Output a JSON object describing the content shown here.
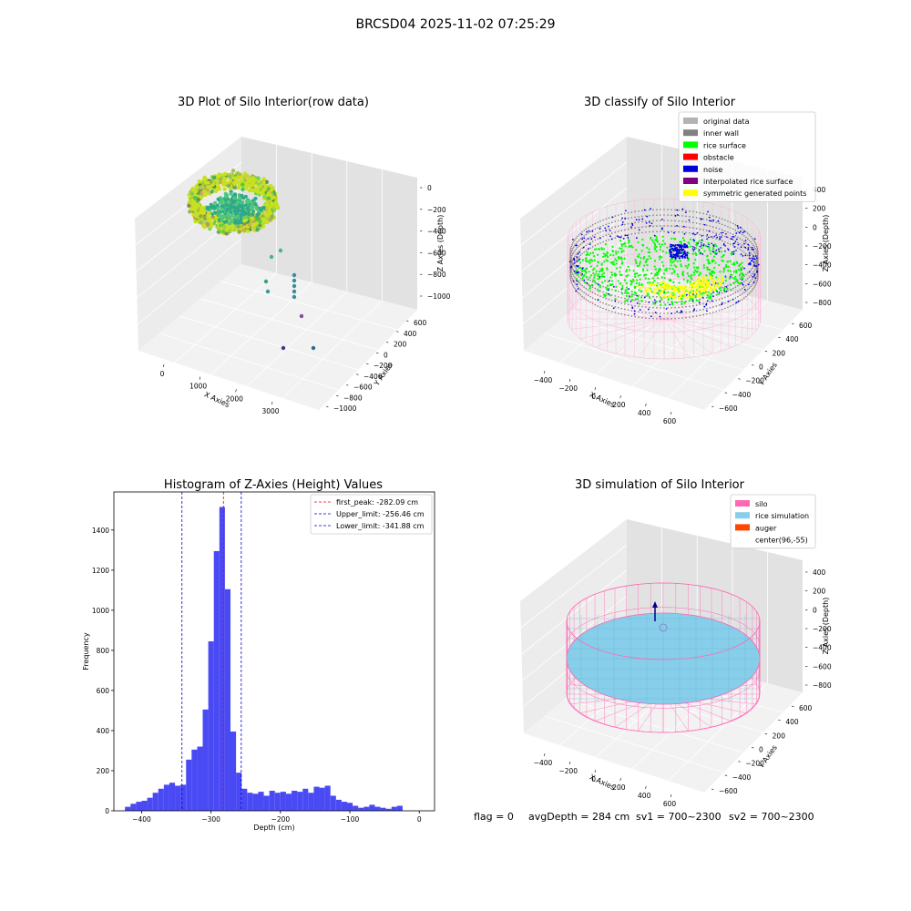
{
  "figure": {
    "title": "BRCSD04 2025-11-02 07:25:29",
    "footer": {
      "flag": "flag = 0",
      "avg": "avgDepth = 284 cm",
      "sv1": "sv1 = 700~2300",
      "sv2": "sv2 = 700~2300"
    }
  },
  "colors": {
    "original": "#b3b3b3",
    "inner_wall": "#808080",
    "rice_surface": "#00ff00",
    "obstacle": "#ff0000",
    "noise": "#0000dd",
    "interpolated": "#800080",
    "symmetric": "#ffff00",
    "silo": "#ff69b4",
    "rice_sim": "#87ceeb",
    "auger": "#ff4500",
    "hist": "#4a4af5",
    "peak_line": "#ff0000",
    "limit_line": "#0000cc"
  },
  "chart_data": [
    {
      "type": "scatter",
      "title": "3D Plot of Silo Interior(row data)",
      "xlabel": "X Axies",
      "ylabel": "Y Axies",
      "zlabel": "Z Axies (Depth)",
      "x_ticks": [
        "0",
        "1000",
        "2000",
        "3000"
      ],
      "y_ticks": [
        "600",
        "400",
        "200",
        "0",
        "−200",
        "−400",
        "−600",
        "−800",
        "−1000"
      ],
      "z_ticks": [
        "0",
        "−200",
        "−400",
        "−600",
        "−800",
        "−1000"
      ]
    },
    {
      "type": "scatter",
      "title": "3D classify of Silo Interior",
      "xlabel": "X Axies",
      "ylabel": "Y Axies",
      "zlabel": "Z Axies (Depth)",
      "x_ticks": [
        "−400",
        "−200",
        "0",
        "200",
        "400",
        "600"
      ],
      "y_ticks": [
        "600",
        "400",
        "200",
        "0",
        "−200",
        "−400",
        "−600"
      ],
      "z_ticks": [
        "400",
        "200",
        "0",
        "−200",
        "−400",
        "−600",
        "−800"
      ],
      "legend": [
        "original data",
        "inner wall",
        "rice surface",
        "obstacle",
        "noise",
        "interpolated rice surface",
        "symmetric generated points"
      ],
      "legend_position": "top-right"
    },
    {
      "type": "bar",
      "title": "Histogram of Z-Axies (Height) Values",
      "xlabel": "Depth (cm)",
      "ylabel": "Frequency",
      "xlim": [
        -440,
        22
      ],
      "ylim": [
        0,
        1590
      ],
      "x_ticks": [
        -400,
        -300,
        -200,
        -100,
        0
      ],
      "y_ticks": [
        0,
        200,
        400,
        600,
        800,
        1000,
        1200,
        1400
      ],
      "bin_start": -424,
      "bin_width": 8,
      "values": [
        20,
        35,
        45,
        50,
        65,
        90,
        110,
        130,
        140,
        125,
        130,
        255,
        305,
        320,
        505,
        845,
        1295,
        1515,
        1105,
        395,
        190,
        110,
        90,
        85,
        95,
        75,
        100,
        90,
        95,
        85,
        100,
        95,
        110,
        90,
        120,
        115,
        125,
        75,
        55,
        45,
        40,
        25,
        15,
        20,
        30,
        20,
        15,
        10,
        20,
        25
      ],
      "lines": [
        {
          "label": "first_peak: -282.09 cm",
          "x": -282.09
        },
        {
          "label": "Upper_limit: -256.46 cm",
          "x": -256.46
        },
        {
          "label": "Lower_limit: -341.88 cm",
          "x": -341.88
        }
      ],
      "legend_position": "top-right"
    },
    {
      "type": "scatter",
      "title": "3D simulation of Silo Interior",
      "xlabel": "X Axies",
      "ylabel": "Y Axies",
      "zlabel": "Z Axies (Depth)",
      "x_ticks": [
        "−400",
        "−200",
        "0",
        "200",
        "400",
        "600"
      ],
      "y_ticks": [
        "600",
        "400",
        "200",
        "0",
        "−200",
        "−400",
        "−600"
      ],
      "z_ticks": [
        "400",
        "200",
        "0",
        "−200",
        "−400",
        "−600",
        "−800"
      ],
      "legend": [
        "silo",
        "rice simulation",
        "auger",
        "center(96,-55)"
      ],
      "legend_position": "top-right"
    }
  ]
}
